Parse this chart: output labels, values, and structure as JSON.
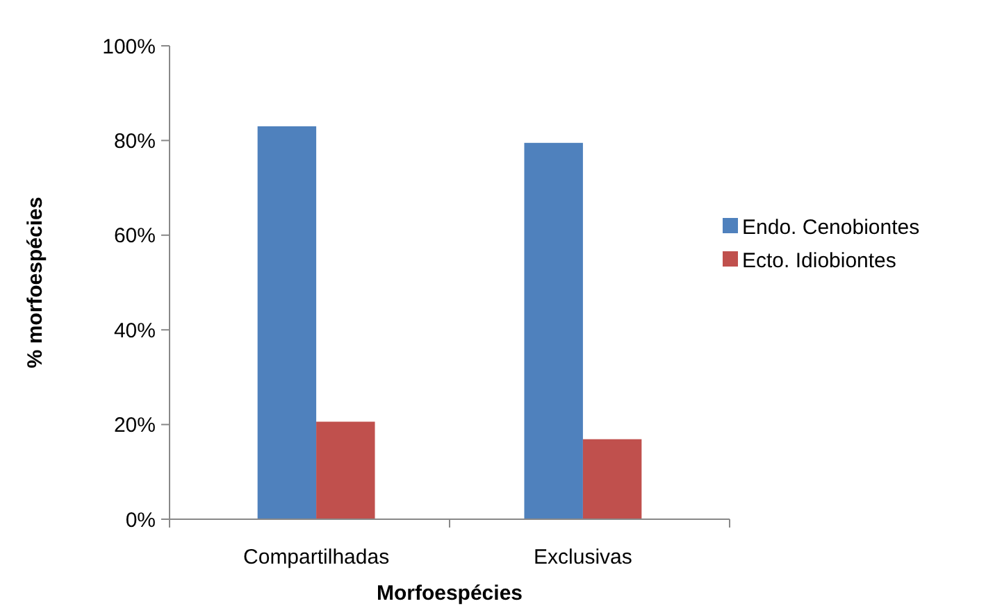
{
  "chart_data": {
    "type": "bar",
    "xlabel": "Morfoespécies",
    "ylabel": "% morfoespécies",
    "categories": [
      "Compartilhadas",
      "Exclusivas"
    ],
    "series": [
      {
        "name": "Endo. Cenobiontes",
        "color": "#4f81bd",
        "values": [
          83,
          79.5
        ]
      },
      {
        "name": "Ecto. Idiobiontes",
        "color": "#c0504d",
        "values": [
          20.6,
          16.9
        ]
      }
    ],
    "ylim": [
      0,
      100
    ],
    "yticks": [
      {
        "value": 0,
        "label": "0%"
      },
      {
        "value": 20,
        "label": "20%"
      },
      {
        "value": 40,
        "label": "40%"
      },
      {
        "value": 60,
        "label": "60%"
      },
      {
        "value": 80,
        "label": "80%"
      },
      {
        "value": 100,
        "label": "100%"
      }
    ],
    "legend": "right"
  }
}
